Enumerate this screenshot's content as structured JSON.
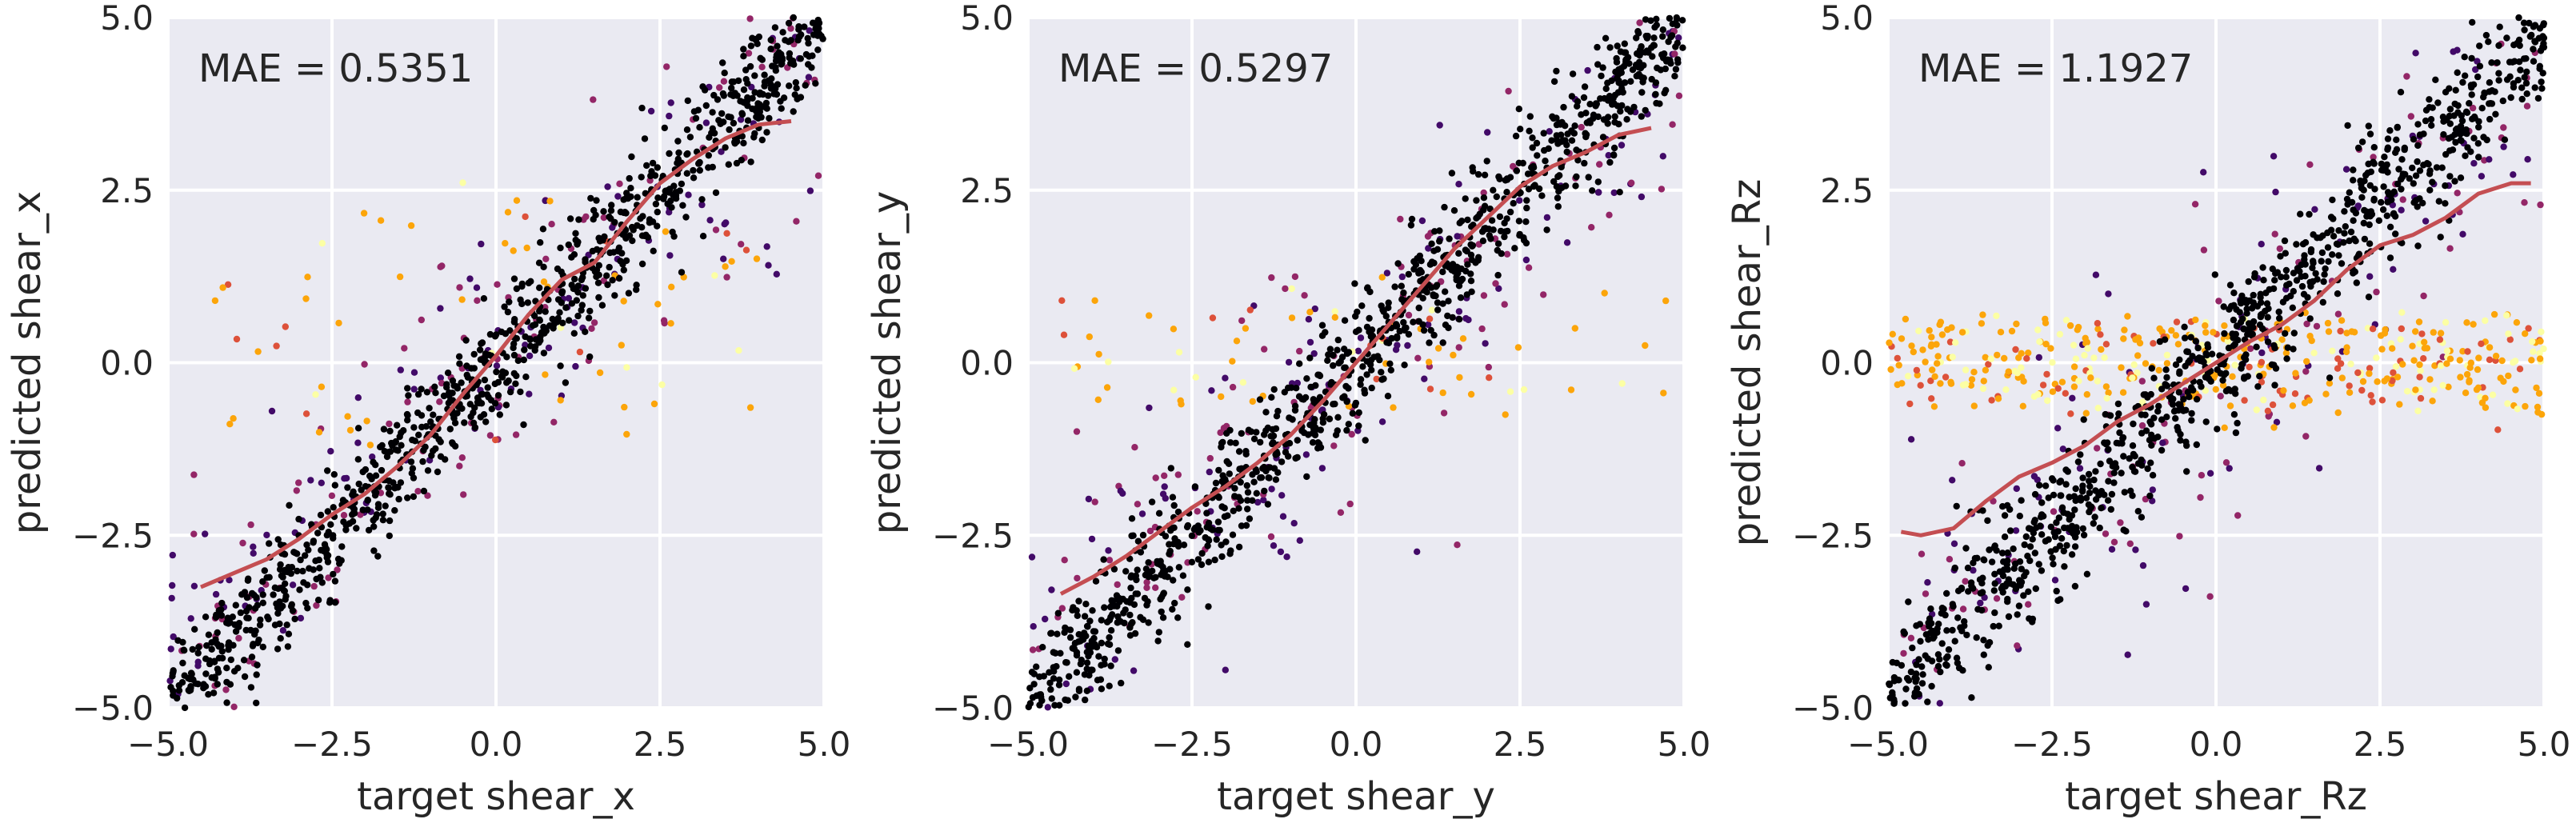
{
  "chart_data": [
    {
      "type": "scatter",
      "xlabel": "target shear_x",
      "ylabel": "predicted shear_x",
      "xlim": [
        -5.0,
        5.0
      ],
      "ylim": [
        -5.0,
        5.0
      ],
      "xticks": [
        "−5.0",
        "−2.5",
        "0.0",
        "2.5",
        "5.0"
      ],
      "yticks": [
        "−5.0",
        "−2.5",
        "0.0",
        "2.5",
        "5.0"
      ],
      "annotation": "MAE = 0.5351",
      "grid": true,
      "colormap": [
        "#000004",
        "#420a68",
        "#932667",
        "#dd513a",
        "#fca50a",
        "#fcffa4"
      ],
      "trend_color": "#c44e52",
      "trend_line": {
        "x": [
          -4.5,
          -4.0,
          -3.5,
          -3.0,
          -2.5,
          -2.0,
          -1.5,
          -1.0,
          -0.5,
          0.0,
          0.5,
          1.0,
          1.5,
          2.0,
          2.5,
          3.0,
          3.5,
          4.0,
          4.5
        ],
        "y": [
          -3.25,
          -3.05,
          -2.85,
          -2.55,
          -2.2,
          -1.9,
          -1.5,
          -1.05,
          -0.45,
          0.1,
          0.7,
          1.2,
          1.45,
          2.05,
          2.6,
          2.95,
          3.25,
          3.45,
          3.5
        ]
      },
      "points": {
        "slope": 1.0,
        "n_core": 1000,
        "n_mid": 230,
        "n_outlier": 65,
        "core_noise": 0.45,
        "mid_noise": 1.0,
        "outlier_x": [
          -4.7,
          4.0
        ],
        "outlier_y": [
          -1.2,
          2.3
        ]
      }
    },
    {
      "type": "scatter",
      "xlabel": "target shear_y",
      "ylabel": "predicted shear_y",
      "xlim": [
        -5.0,
        5.0
      ],
      "ylim": [
        -5.0,
        5.0
      ],
      "xticks": [
        "−5.0",
        "−2.5",
        "0.0",
        "2.5",
        "5.0"
      ],
      "yticks": [
        "−5.0",
        "−2.5",
        "0.0",
        "2.5",
        "5.0"
      ],
      "annotation": "MAE = 0.5297",
      "grid": true,
      "colormap": [
        "#000004",
        "#420a68",
        "#932667",
        "#dd513a",
        "#fca50a",
        "#fcffa4"
      ],
      "trend_color": "#c44e52",
      "trend_line": {
        "x": [
          -4.5,
          -4.0,
          -3.5,
          -3.0,
          -2.5,
          -2.0,
          -1.5,
          -1.0,
          -0.5,
          0.0,
          0.5,
          1.0,
          1.5,
          2.0,
          2.5,
          3.0,
          3.5,
          4.0,
          4.5
        ],
        "y": [
          -3.35,
          -3.1,
          -2.8,
          -2.45,
          -2.1,
          -1.8,
          -1.45,
          -1.05,
          -0.55,
          0.0,
          0.55,
          1.1,
          1.65,
          2.1,
          2.55,
          2.85,
          3.05,
          3.3,
          3.4
        ]
      },
      "points": {
        "slope": 1.0,
        "n_core": 1000,
        "n_mid": 230,
        "n_outlier": 65,
        "core_noise": 0.45,
        "mid_noise": 1.0,
        "outlier_x": [
          -4.5,
          4.9
        ],
        "outlier_y": [
          -0.8,
          1.1
        ]
      }
    },
    {
      "type": "scatter",
      "xlabel": "target shear_Rz",
      "ylabel": "predicted shear_Rz",
      "xlim": [
        -5.0,
        5.0
      ],
      "ylim": [
        -5.0,
        5.0
      ],
      "xticks": [
        "−5.0",
        "−2.5",
        "0.0",
        "2.5",
        "5.0"
      ],
      "yticks": [
        "−5.0",
        "−2.5",
        "0.0",
        "2.5",
        "5.0"
      ],
      "annotation": "MAE = 1.1927",
      "grid": true,
      "colormap": [
        "#000004",
        "#420a68",
        "#932667",
        "#dd513a",
        "#fca50a",
        "#fcffa4"
      ],
      "trend_color": "#c44e52",
      "trend_line": {
        "x": [
          -4.8,
          -4.5,
          -4.0,
          -3.5,
          -3.0,
          -2.5,
          -2.0,
          -1.5,
          -1.0,
          -0.5,
          0.0,
          0.5,
          1.0,
          1.5,
          2.0,
          2.5,
          3.0,
          3.5,
          4.0,
          4.5,
          4.8
        ],
        "y": [
          -2.45,
          -2.5,
          -2.4,
          -2.0,
          -1.65,
          -1.45,
          -1.2,
          -0.85,
          -0.6,
          -0.3,
          0.0,
          0.3,
          0.55,
          0.9,
          1.35,
          1.7,
          1.85,
          2.1,
          2.45,
          2.6,
          2.6
        ]
      },
      "points": {
        "slope": 0.95,
        "n_core": 950,
        "n_mid": 200,
        "n_outlier": 420,
        "core_noise": 0.5,
        "mid_noise": 1.3,
        "outlier_x": [
          -5.0,
          5.0
        ],
        "outlier_y": [
          -0.6,
          0.6
        ]
      }
    }
  ]
}
